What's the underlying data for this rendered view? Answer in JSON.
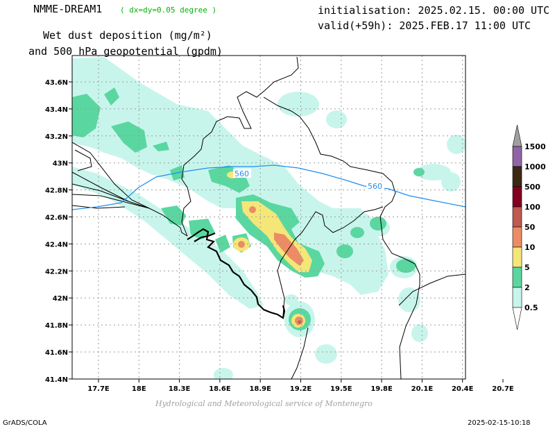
{
  "header": {
    "model": "NMME-DREAM1",
    "resolution": "( dx=dy=0.05 degree )",
    "initialisation": "initialisation: 2025.02.15. 00:00 UTC",
    "valid": "valid(+59h): 2025.FEB.17 11:00 UTC",
    "title_line1": "Wet dust deposition (mg/m²)",
    "title_line2": "and 500 hPa geopotential (gpdm)"
  },
  "map": {
    "lon_ticks": [
      "17.7E",
      "18E",
      "18.3E",
      "18.6E",
      "18.9E",
      "19.2E",
      "19.5E",
      "19.8E",
      "20.1E",
      "20.4E",
      "20.7E"
    ],
    "lat_ticks": [
      "43.6N",
      "43.4N",
      "43.2N",
      "43N",
      "42.8N",
      "42.6N",
      "42.4N",
      "42.2N",
      "42N",
      "41.8N",
      "41.6N",
      "41.4N"
    ],
    "contour_labels": [
      "560",
      "560"
    ],
    "colors": {
      "c05": "#c8f5eb",
      "c2": "#5ad7a0",
      "c5": "#f5e678",
      "c10": "#ec8c64",
      "c50": "#be5a50",
      "contour": "#1e8cf0"
    }
  },
  "legend": {
    "labels": [
      "1500",
      "1000",
      "500",
      "100",
      "50",
      "10",
      "5",
      "2",
      "0.5"
    ],
    "colors": [
      "#a0a0a0",
      "#9164a5",
      "#3c2814",
      "#82001e",
      "#be5a50",
      "#ec8c64",
      "#f5e678",
      "#5ad7a0",
      "#c8f5eb",
      "#ffffff"
    ]
  },
  "footer": {
    "credit": "Hydrological and Meteorological service of Montenegro",
    "left": "GrADS/COLA",
    "right": "2025-02-15-10:18"
  }
}
